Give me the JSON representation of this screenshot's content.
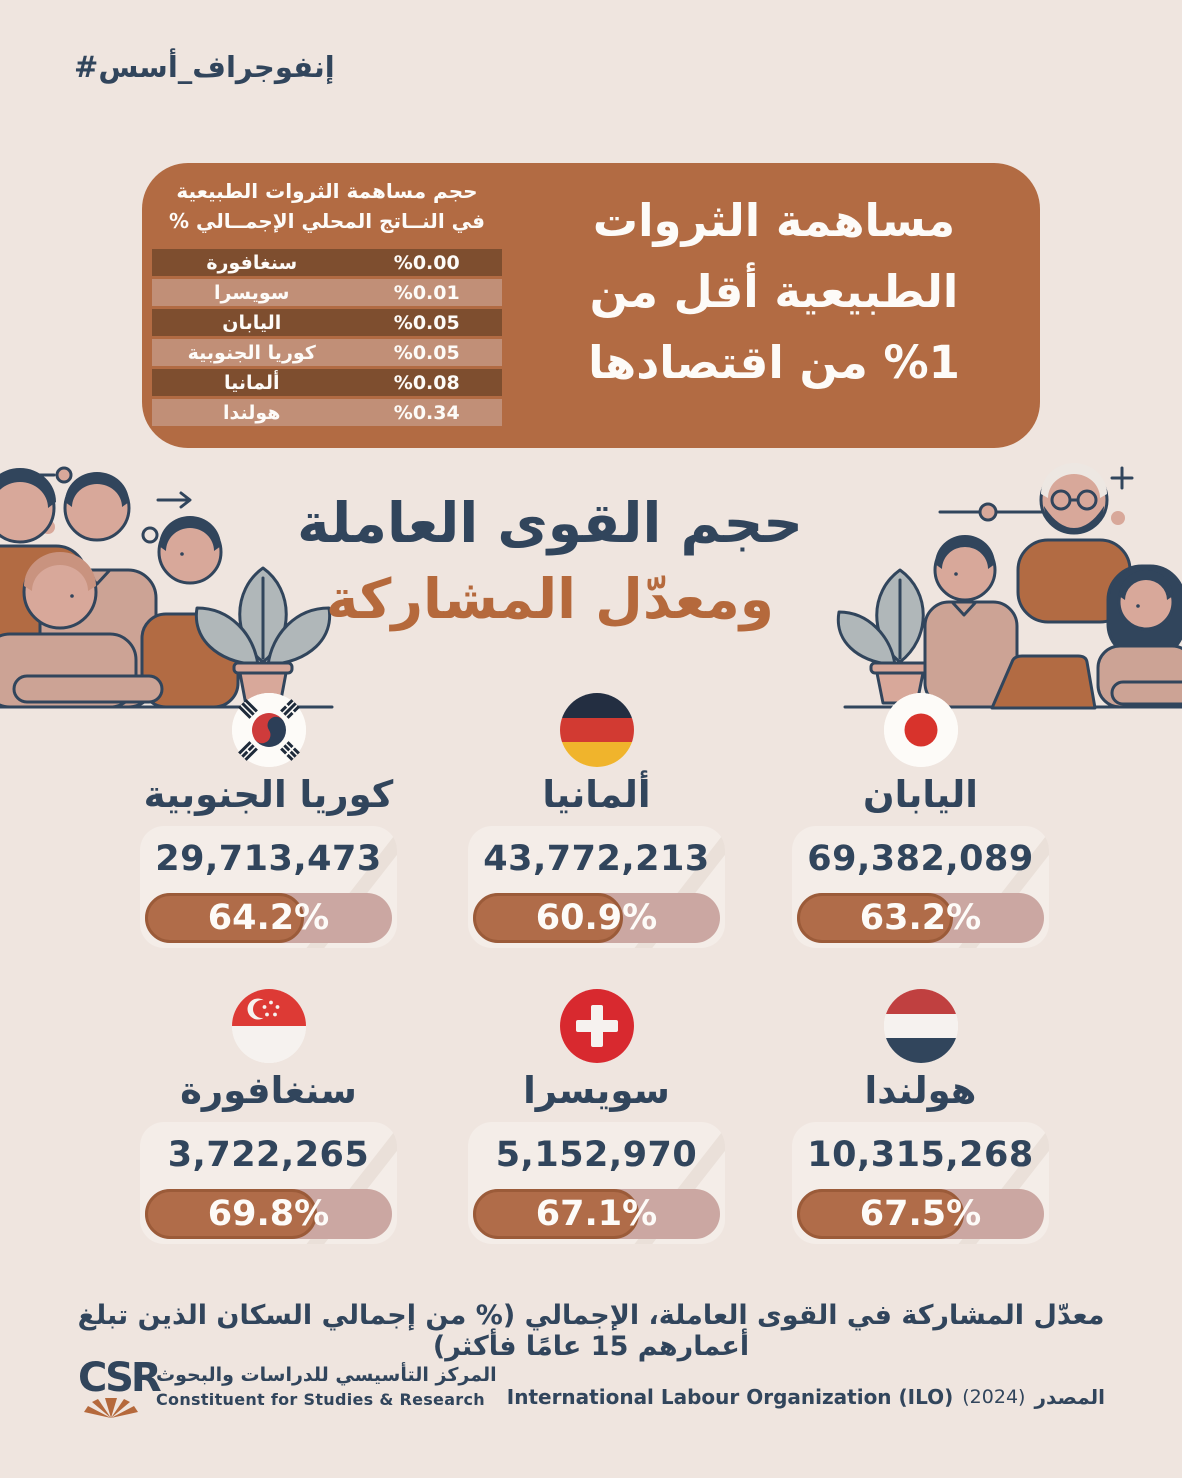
{
  "page": {
    "hashtag_part1": "#أسس_",
    "hashtag_part2": "إنفوجراف",
    "colors": {
      "background": "#EFE5DF",
      "navy": "#31455C",
      "terracotta": "#B26B43",
      "table_row_dark": "#7E4E2F",
      "table_row_light": "#C18F77",
      "pill_track": "#CBA7A2",
      "pill_fill": "#B06C49",
      "orange_title": "#B5693C"
    }
  },
  "top_box": {
    "title_lines": [
      "مساهمة الثروات",
      "الطبيعية أقل من",
      "%1 من اقتصادها"
    ],
    "table": {
      "header_line1": "حجم مساهمة الثروات الطبيعية",
      "header_line2": "في النــاتج المحلي الإجمــالي %",
      "rows": [
        {
          "country": "سنغافورة",
          "value": "%0.00"
        },
        {
          "country": "سويسرا",
          "value": "%0.01"
        },
        {
          "country": "اليابان",
          "value": "%0.05"
        },
        {
          "country": "كوريا الجنوبية",
          "value": "%0.05"
        },
        {
          "country": "ألمانيا",
          "value": "%0.08"
        },
        {
          "country": "هولندا",
          "value": "%0.34"
        }
      ]
    }
  },
  "section_title": {
    "line1": "حجم القوى العاملة",
    "line2": "ومعدّل المشاركة"
  },
  "countries": [
    {
      "name": "كوريا الجنوبية",
      "flag": "south-korea-flag",
      "labor_force": "29,713,473",
      "participation": "64.2%",
      "participation_pct": 64.2
    },
    {
      "name": "ألمانيا",
      "flag": "germany-flag",
      "labor_force": "43,772,213",
      "participation": "60.9%",
      "participation_pct": 60.9
    },
    {
      "name": "اليابان",
      "flag": "japan-flag",
      "labor_force": "69,382,089",
      "participation": "63.2%",
      "participation_pct": 63.2
    },
    {
      "name": "سنغافورة",
      "flag": "singapore-flag",
      "labor_force": "3,722,265",
      "participation": "69.8%",
      "participation_pct": 69.8
    },
    {
      "name": "سويسرا",
      "flag": "switzerland-flag",
      "labor_force": "5,152,970",
      "participation": "67.1%",
      "participation_pct": 67.1
    },
    {
      "name": "هولندا",
      "flag": "netherlands-flag",
      "labor_force": "10,315,268",
      "participation": "67.5%",
      "participation_pct": 67.5
    }
  ],
  "footnote": "معدّل المشاركة في القوى العاملة، الإجمالي (% من إجمالي السكان الذين تبلغ أعمارهم 15 عامًا فأكثر)",
  "footer": {
    "logo_text": "CSR",
    "org_ar": "المركز التأسيسي للدراسات والبحوث",
    "org_en": "Constituent for Studies & Research",
    "source_org": "International Labour Organization (ILO)",
    "source_year": "(2024)",
    "source_label": "المصدر"
  },
  "chart_data": [
    {
      "type": "table",
      "title": "حجم مساهمة الثروات الطبيعية في النــاتج المحلي الإجمــالي %",
      "categories": [
        "سنغافورة",
        "سويسرا",
        "اليابان",
        "كوريا الجنوبية",
        "ألمانيا",
        "هولندا"
      ],
      "values": [
        0.0,
        0.01,
        0.05,
        0.05,
        0.08,
        0.34
      ],
      "unit": "%"
    },
    {
      "type": "bar",
      "title": "حجم القوى العاملة ومعدّل المشاركة",
      "categories": [
        "كوريا الجنوبية",
        "ألمانيا",
        "اليابان",
        "سنغافورة",
        "سويسرا",
        "هولندا"
      ],
      "series": [
        {
          "name": "حجم القوى العاملة",
          "values": [
            29713473,
            43772213,
            69382089,
            3722265,
            5152970,
            10315268
          ]
        },
        {
          "name": "معدّل المشاركة %",
          "values": [
            64.2,
            60.9,
            63.2,
            69.8,
            67.1,
            67.5
          ]
        }
      ],
      "source": "International Labour Organization (ILO) 2024"
    }
  ]
}
